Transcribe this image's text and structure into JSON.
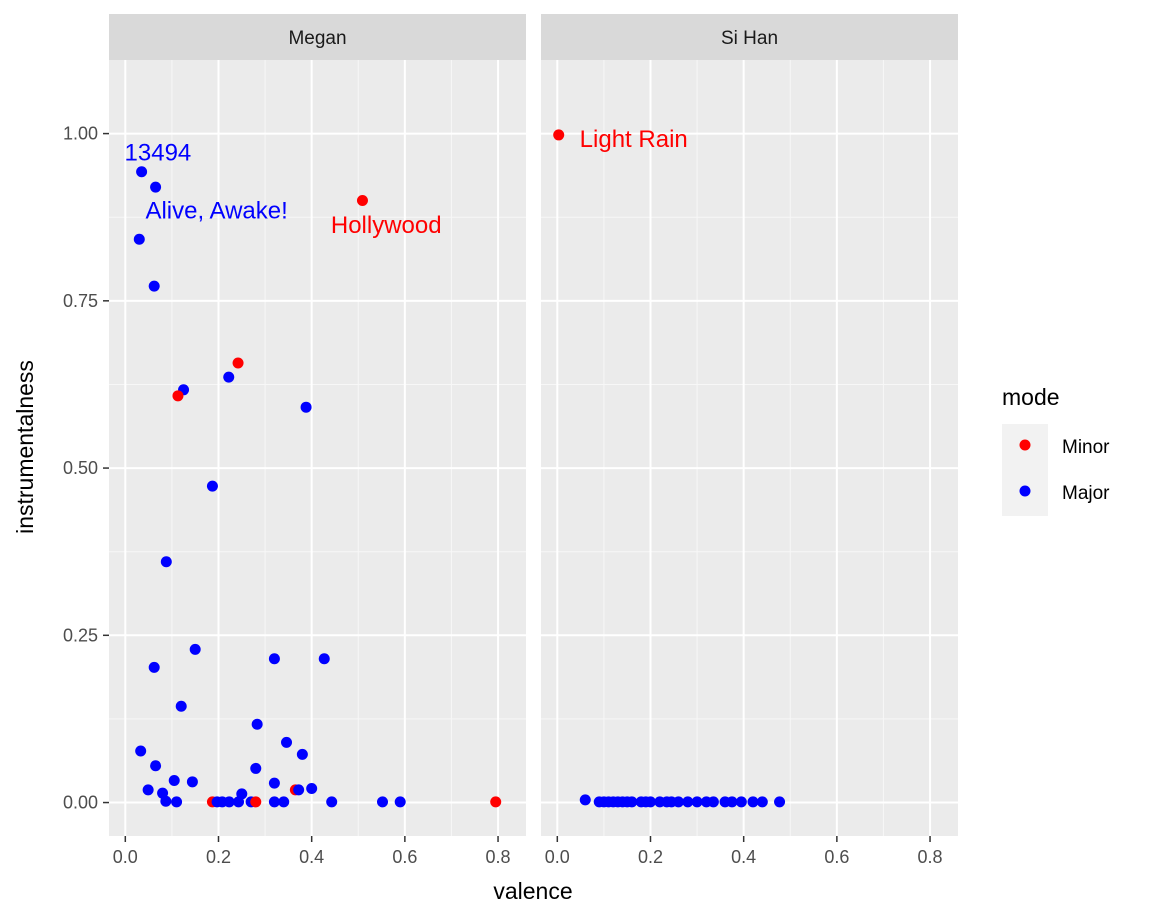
{
  "chart_data": {
    "type": "scatter",
    "xlabel": "valence",
    "ylabel": "instrumentalness",
    "xlim": [
      -0.035,
      0.86
    ],
    "ylim": [
      -0.05,
      1.11
    ],
    "x_ticks": [
      "0.0",
      "0.2",
      "0.4",
      "0.6",
      "0.8"
    ],
    "x_tick_values": [
      0,
      0.2,
      0.4,
      0.6,
      0.8
    ],
    "y_ticks": [
      "0.00",
      "0.25",
      "0.50",
      "0.75",
      "1.00"
    ],
    "y_tick_values": [
      0,
      0.25,
      0.5,
      0.75,
      1.0
    ],
    "grid": true,
    "legend": {
      "title": "mode",
      "position": "right",
      "entries": [
        {
          "label": "Minor",
          "color": "#ff0000"
        },
        {
          "label": "Major",
          "color": "#0000ff"
        }
      ]
    },
    "facets": [
      {
        "name": "Megan",
        "points": [
          {
            "x": 0.035,
            "y": 0.943,
            "mode": "Major"
          },
          {
            "x": 0.065,
            "y": 0.92,
            "mode": "Major"
          },
          {
            "x": 0.03,
            "y": 0.842,
            "mode": "Major"
          },
          {
            "x": 0.062,
            "y": 0.772,
            "mode": "Major"
          },
          {
            "x": 0.509,
            "y": 0.9,
            "mode": "Minor"
          },
          {
            "x": 0.242,
            "y": 0.657,
            "mode": "Minor"
          },
          {
            "x": 0.222,
            "y": 0.636,
            "mode": "Major"
          },
          {
            "x": 0.125,
            "y": 0.617,
            "mode": "Major"
          },
          {
            "x": 0.113,
            "y": 0.608,
            "mode": "Minor"
          },
          {
            "x": 0.388,
            "y": 0.591,
            "mode": "Major"
          },
          {
            "x": 0.187,
            "y": 0.473,
            "mode": "Major"
          },
          {
            "x": 0.088,
            "y": 0.36,
            "mode": "Major"
          },
          {
            "x": 0.15,
            "y": 0.229,
            "mode": "Major"
          },
          {
            "x": 0.32,
            "y": 0.215,
            "mode": "Major"
          },
          {
            "x": 0.427,
            "y": 0.215,
            "mode": "Major"
          },
          {
            "x": 0.062,
            "y": 0.202,
            "mode": "Major"
          },
          {
            "x": 0.12,
            "y": 0.144,
            "mode": "Major"
          },
          {
            "x": 0.283,
            "y": 0.117,
            "mode": "Major"
          },
          {
            "x": 0.346,
            "y": 0.09,
            "mode": "Major"
          },
          {
            "x": 0.033,
            "y": 0.077,
            "mode": "Major"
          },
          {
            "x": 0.38,
            "y": 0.072,
            "mode": "Major"
          },
          {
            "x": 0.065,
            "y": 0.055,
            "mode": "Major"
          },
          {
            "x": 0.28,
            "y": 0.051,
            "mode": "Major"
          },
          {
            "x": 0.105,
            "y": 0.033,
            "mode": "Major"
          },
          {
            "x": 0.144,
            "y": 0.031,
            "mode": "Major"
          },
          {
            "x": 0.32,
            "y": 0.029,
            "mode": "Major"
          },
          {
            "x": 0.049,
            "y": 0.019,
            "mode": "Major"
          },
          {
            "x": 0.4,
            "y": 0.021,
            "mode": "Major"
          },
          {
            "x": 0.365,
            "y": 0.019,
            "mode": "Minor"
          },
          {
            "x": 0.372,
            "y": 0.019,
            "mode": "Major"
          },
          {
            "x": 0.08,
            "y": 0.014,
            "mode": "Major"
          },
          {
            "x": 0.25,
            "y": 0.013,
            "mode": "Major"
          },
          {
            "x": 0.087,
            "y": 0.002,
            "mode": "Major"
          },
          {
            "x": 0.11,
            "y": 0.001,
            "mode": "Major"
          },
          {
            "x": 0.187,
            "y": 0.001,
            "mode": "Minor"
          },
          {
            "x": 0.197,
            "y": 0.001,
            "mode": "Major"
          },
          {
            "x": 0.208,
            "y": 0.001,
            "mode": "Major"
          },
          {
            "x": 0.223,
            "y": 0.001,
            "mode": "Major"
          },
          {
            "x": 0.243,
            "y": 0.001,
            "mode": "Major"
          },
          {
            "x": 0.27,
            "y": 0.001,
            "mode": "Major"
          },
          {
            "x": 0.28,
            "y": 0.001,
            "mode": "Minor"
          },
          {
            "x": 0.32,
            "y": 0.001,
            "mode": "Major"
          },
          {
            "x": 0.34,
            "y": 0.001,
            "mode": "Major"
          },
          {
            "x": 0.443,
            "y": 0.001,
            "mode": "Major"
          },
          {
            "x": 0.552,
            "y": 0.001,
            "mode": "Major"
          },
          {
            "x": 0.59,
            "y": 0.001,
            "mode": "Major"
          },
          {
            "x": 0.795,
            "y": 0.001,
            "mode": "Minor"
          }
        ],
        "annotations": [
          {
            "text": "13494",
            "x": 0.07,
            "y": 0.972,
            "color": "#0000ff",
            "anchor": "middle"
          },
          {
            "text": "Alive, Awake!",
            "x": 0.196,
            "y": 0.885,
            "color": "#0000ff",
            "anchor": "middle"
          },
          {
            "text": "Hollywood",
            "x": 0.56,
            "y": 0.863,
            "color": "#ff0000",
            "anchor": "middle"
          }
        ]
      },
      {
        "name": "Si Han",
        "points": [
          {
            "x": 0.003,
            "y": 0.998,
            "mode": "Minor"
          },
          {
            "x": 0.06,
            "y": 0.004,
            "mode": "Major"
          },
          {
            "x": 0.09,
            "y": 0.001,
            "mode": "Major"
          },
          {
            "x": 0.1,
            "y": 0.001,
            "mode": "Major"
          },
          {
            "x": 0.11,
            "y": 0.001,
            "mode": "Major"
          },
          {
            "x": 0.12,
            "y": 0.001,
            "mode": "Major"
          },
          {
            "x": 0.13,
            "y": 0.001,
            "mode": "Major"
          },
          {
            "x": 0.14,
            "y": 0.001,
            "mode": "Major"
          },
          {
            "x": 0.15,
            "y": 0.001,
            "mode": "Major"
          },
          {
            "x": 0.16,
            "y": 0.001,
            "mode": "Major"
          },
          {
            "x": 0.18,
            "y": 0.001,
            "mode": "Major"
          },
          {
            "x": 0.19,
            "y": 0.001,
            "mode": "Major"
          },
          {
            "x": 0.2,
            "y": 0.001,
            "mode": "Major"
          },
          {
            "x": 0.22,
            "y": 0.001,
            "mode": "Major"
          },
          {
            "x": 0.235,
            "y": 0.001,
            "mode": "Major"
          },
          {
            "x": 0.245,
            "y": 0.001,
            "mode": "Major"
          },
          {
            "x": 0.26,
            "y": 0.001,
            "mode": "Major"
          },
          {
            "x": 0.28,
            "y": 0.001,
            "mode": "Major"
          },
          {
            "x": 0.3,
            "y": 0.001,
            "mode": "Major"
          },
          {
            "x": 0.32,
            "y": 0.001,
            "mode": "Major"
          },
          {
            "x": 0.335,
            "y": 0.001,
            "mode": "Major"
          },
          {
            "x": 0.36,
            "y": 0.001,
            "mode": "Major"
          },
          {
            "x": 0.375,
            "y": 0.001,
            "mode": "Major"
          },
          {
            "x": 0.395,
            "y": 0.001,
            "mode": "Major"
          },
          {
            "x": 0.42,
            "y": 0.001,
            "mode": "Major"
          },
          {
            "x": 0.44,
            "y": 0.001,
            "mode": "Major"
          },
          {
            "x": 0.477,
            "y": 0.001,
            "mode": "Major"
          }
        ],
        "annotations": [
          {
            "text": "Light Rain",
            "x": 0.164,
            "y": 0.992,
            "color": "#ff0000",
            "anchor": "middle"
          }
        ]
      }
    ]
  }
}
